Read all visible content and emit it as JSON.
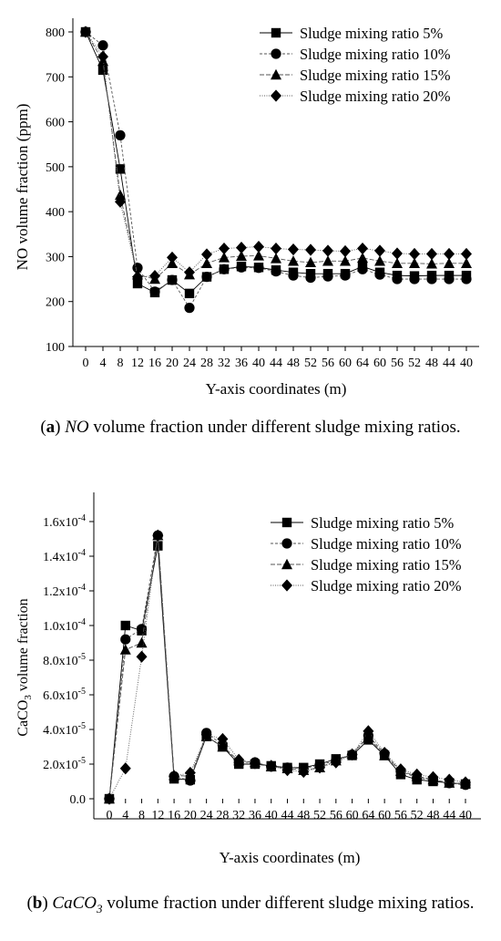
{
  "chart_data": [
    {
      "type": "line",
      "xlabel": "Y-axis coordinates (m)",
      "ylabel": "NO volume fraction (ppm)",
      "categories": [
        "0",
        "4",
        "8",
        "12",
        "16",
        "20",
        "24",
        "28",
        "32",
        "36",
        "40",
        "44",
        "48",
        "52",
        "56",
        "60",
        "64",
        "60",
        "56",
        "52",
        "48",
        "44",
        "40"
      ],
      "yticks": [
        "100",
        "200",
        "300",
        "400",
        "500",
        "600",
        "700",
        "800"
      ],
      "ylim": [
        100,
        800
      ],
      "grid": false,
      "legend_position": "top-right",
      "series": [
        {
          "name": "Sludge mixing ratio 5%",
          "marker": "square",
          "values": [
            800,
            715,
            495,
            240,
            220,
            248,
            218,
            255,
            272,
            278,
            276,
            270,
            265,
            262,
            262,
            262,
            278,
            265,
            258,
            257,
            258,
            258,
            258
          ]
        },
        {
          "name": "Sludge mixing ratio 10%",
          "marker": "circle",
          "values": [
            800,
            770,
            570,
            275,
            222,
            248,
            186,
            255,
            272,
            276,
            275,
            267,
            258,
            253,
            256,
            258,
            272,
            260,
            250,
            250,
            250,
            250,
            250
          ]
        },
        {
          "name": "Sludge mixing ratio 15%",
          "marker": "triangle",
          "values": [
            800,
            735,
            437,
            260,
            250,
            285,
            260,
            285,
            298,
            301,
            302,
            296,
            290,
            287,
            290,
            290,
            297,
            290,
            285,
            285,
            284,
            285,
            285
          ]
        },
        {
          "name": "Sludge mixing ratio 20%",
          "marker": "diamond",
          "values": [
            800,
            745,
            422,
            255,
            257,
            298,
            265,
            305,
            318,
            320,
            322,
            318,
            316,
            315,
            313,
            312,
            318,
            313,
            307,
            306,
            306,
            306,
            306
          ]
        }
      ]
    },
    {
      "type": "line",
      "xlabel": "Y-axis coordinates (m)",
      "ylabel_main": "CaCO",
      "ylabel_sub": "3",
      "ylabel_tail": " volume fraction",
      "categories": [
        "0",
        "4",
        "8",
        "12",
        "16",
        "20",
        "24",
        "28",
        "32",
        "36",
        "40",
        "44",
        "48",
        "52",
        "56",
        "60",
        "64",
        "60",
        "56",
        "52",
        "48",
        "44",
        "40"
      ],
      "yticks": [
        {
          "mant": "0.0",
          "exp": ""
        },
        {
          "mant": "2.0x10",
          "exp": "-5"
        },
        {
          "mant": "4.0x10",
          "exp": "-5"
        },
        {
          "mant": "6.0x10",
          "exp": "-5"
        },
        {
          "mant": "8.0x10",
          "exp": "-5"
        },
        {
          "mant": "1.0x10",
          "exp": "-4"
        },
        {
          "mant": "1.2x10",
          "exp": "-4"
        },
        {
          "mant": "1.4x10",
          "exp": "-4"
        },
        {
          "mant": "1.6x10",
          "exp": "-4"
        }
      ],
      "ylim": [
        0,
        0.00016
      ],
      "grid": false,
      "legend_position": "top-right",
      "series": [
        {
          "name": "Sludge mixing ratio 5%",
          "marker": "square",
          "values": [
            0,
            0.0001,
            9.7e-05,
            0.000146,
            1.15e-05,
            1.1e-05,
            3.6e-05,
            3e-05,
            2e-05,
            2e-05,
            1.9e-05,
            1.8e-05,
            1.8e-05,
            2e-05,
            2.3e-05,
            2.5e-05,
            3.4e-05,
            2.5e-05,
            1.4e-05,
            1.1e-05,
            1e-05,
            9.2e-06,
            8.5e-06
          ]
        },
        {
          "name": "Sludge mixing ratio 10%",
          "marker": "circle",
          "values": [
            0,
            9.2e-05,
            9.8e-05,
            0.000152,
            1.3e-05,
            1.05e-05,
            3.8e-05,
            3.1e-05,
            2.1e-05,
            2.1e-05,
            1.85e-05,
            1.8e-05,
            1.75e-05,
            1.95e-05,
            2.2e-05,
            2.55e-05,
            3.65e-05,
            2.6e-05,
            1.6e-05,
            1.2e-05,
            1.1e-05,
            9e-06,
            8e-06
          ]
        },
        {
          "name": "Sludge mixing ratio 15%",
          "marker": "triangle",
          "values": [
            0,
            8.6e-05,
            9e-05,
            0.000152,
            1.35e-05,
            1.3e-05,
            3.6e-05,
            3e-05,
            2.2e-05,
            2.1e-05,
            1.85e-05,
            1.75e-05,
            1.65e-05,
            1.8e-05,
            2.2e-05,
            2.6e-05,
            3.55e-05,
            2.5e-05,
            1.6e-05,
            1.3e-05,
            1.1e-05,
            9.2e-06,
            8.8e-06
          ]
        },
        {
          "name": "Sludge mixing ratio 20%",
          "marker": "diamond",
          "values": [
            0,
            1.75e-05,
            8.2e-05,
            0.000152,
            1.3e-05,
            1.5e-05,
            3.7e-05,
            3.45e-05,
            2.25e-05,
            2.05e-05,
            1.9e-05,
            1.65e-05,
            1.55e-05,
            1.8e-05,
            2.1e-05,
            2.55e-05,
            3.9e-05,
            2.65e-05,
            1.7e-05,
            1.4e-05,
            1.25e-05,
            1.1e-05,
            9.5e-06
          ]
        }
      ]
    }
  ],
  "captions": {
    "a": {
      "letter": "a",
      "italic": "NO",
      "text": " volume fraction under different sludge mixing ratios."
    },
    "b": {
      "letter": "b",
      "italic_main": "CaCO",
      "italic_sub": "3",
      "text": " volume fraction under different sludge mixing ratios."
    }
  }
}
